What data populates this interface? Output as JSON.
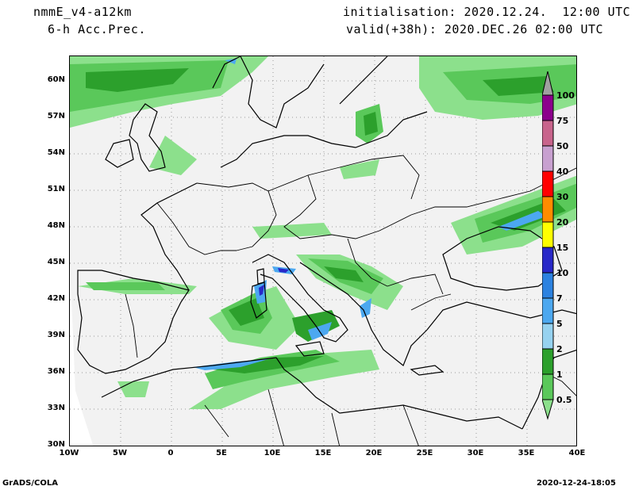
{
  "header": {
    "model": "nmmE_v4-a12km",
    "field": "6-h Acc.Prec.",
    "init": "initialisation: 2020.12.24.  12:00 UTC",
    "valid": "valid(+38h): 2020.DEC.26 02:00 UTC"
  },
  "footer": {
    "software": "GrADS/COLA",
    "timestamp": "2020-12-24-18:05"
  },
  "axes": {
    "lat_labels": [
      "60N",
      "57N",
      "54N",
      "51N",
      "48N",
      "45N",
      "42N",
      "39N",
      "36N",
      "33N",
      "30N"
    ],
    "lon_labels": [
      "10W",
      "5W",
      "0",
      "5E",
      "10E",
      "15E",
      "20E",
      "25E",
      "30E",
      "35E",
      "40E"
    ]
  },
  "legend": {
    "levels": [
      "100",
      "75",
      "50",
      "40",
      "30",
      "20",
      "15",
      "10",
      "7",
      "5",
      "2",
      "1",
      "0.5"
    ],
    "colors": {
      "gt100": "#a0a0a0",
      "75_100": "#8c008c",
      "50_75": "#c8648c",
      "40_50": "#c8a0d0",
      "30_40": "#ff0000",
      "20_30": "#ff8c00",
      "15_20": "#ffff00",
      "10_15": "#2828c8",
      "7_10": "#2c82e0",
      "5_7": "#4ca8f0",
      "2_5": "#96d2f0",
      "1_2": "#2ca02c",
      "0.5_1": "#5ac85a",
      "lt0.5": "#8ce08c"
    }
  }
}
